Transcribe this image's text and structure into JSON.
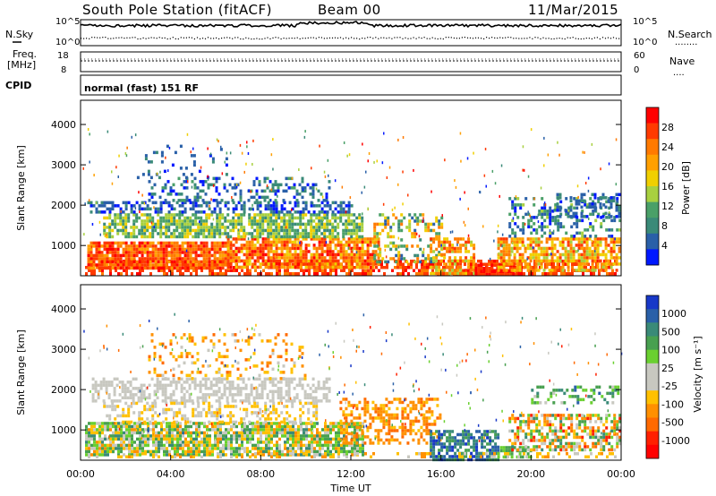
{
  "header": {
    "station": "South Pole Station (fitACF)",
    "beam": "Beam 00",
    "date": "11/Mar/2015"
  },
  "strip_labels": {
    "nsky": "N.Sky",
    "nsearch": "N.Search",
    "nsearch_dots": "........",
    "freq_line1": "Freq.",
    "freq_line2": "[MHz]",
    "nave": "Nave",
    "nave_dots": "....",
    "cpid": "CPID",
    "cpid_text": "normal (fast) 151 RF",
    "noise_ticks": [
      "10^5",
      "10^0"
    ],
    "freq_ticks": [
      "18",
      "8"
    ],
    "nave_ticks": [
      "60",
      "0"
    ]
  },
  "chart_data": [
    {
      "type": "heatmap",
      "panel": "power",
      "ylabel": "Slant Range [km]",
      "xlabel": "",
      "ylim": [
        250,
        4600
      ],
      "y_ticks": [
        1000,
        2000,
        3000,
        4000
      ],
      "colorbar_label": "Power [dB]",
      "colorbar_ticks": [
        "28",
        "24",
        "20",
        "16",
        "12",
        "8",
        "4"
      ],
      "colorbar_colors": [
        "#ff0000",
        "#ff3a00",
        "#ff7a00",
        "#ffa000",
        "#f0cf00",
        "#a8d040",
        "#4aa068",
        "#3a8a78",
        "#2a60a8",
        "#0018ff"
      ]
    },
    {
      "type": "heatmap",
      "panel": "velocity",
      "ylabel": "Slant Range [km]",
      "xlabel": "Time UT",
      "ylim": [
        250,
        4600
      ],
      "y_ticks": [
        1000,
        2000,
        3000,
        4000
      ],
      "x_ticks": [
        "00:00",
        "04:00",
        "08:00",
        "12:00",
        "16:00",
        "20:00",
        "00:00"
      ],
      "xlim_hours": [
        0,
        24
      ],
      "colorbar_label": "Velocity [m s⁻¹]",
      "colorbar_ticks": [
        "1000",
        "500",
        "100",
        "25",
        "-25",
        "-100",
        "-500",
        "-1000"
      ],
      "colorbar_colors": [
        "#1838c8",
        "#2a60a8",
        "#3a8a78",
        "#48a050",
        "#6ad030",
        "#c8c8c0",
        "#c8c8c0",
        "#ffc000",
        "#ff9000",
        "#ff6a00",
        "#ff2000",
        "#ff0000"
      ]
    }
  ]
}
